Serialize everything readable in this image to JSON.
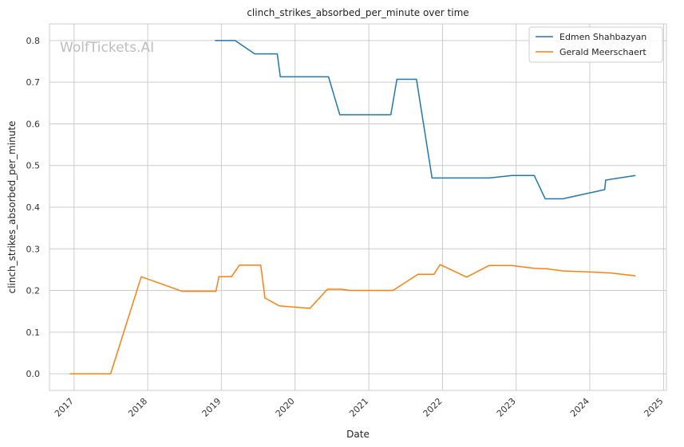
{
  "chart_data": {
    "type": "line",
    "title": "clinch_strikes_absorbed_per_minute over time",
    "xlabel": "Date",
    "ylabel": "clinch_strikes_absorbed_per_minute",
    "watermark": "WolfTickets.AI",
    "xlim": [
      "2016-09-01",
      "2025-01-15"
    ],
    "ylim": [
      -0.04,
      0.84
    ],
    "x_ticks": [
      "2017",
      "2018",
      "2019",
      "2020",
      "2021",
      "2022",
      "2023",
      "2024",
      "2025"
    ],
    "y_ticks": [
      "0.0",
      "0.1",
      "0.2",
      "0.3",
      "0.4",
      "0.5",
      "0.6",
      "0.7",
      "0.8"
    ],
    "grid": true,
    "legend_position": "top-right",
    "series": [
      {
        "name": "Edmen Shahbazyan",
        "color": "#1f77b4",
        "points": [
          [
            "2018-11-30",
            0.8
          ],
          [
            "2019-03-10",
            0.8
          ],
          [
            "2019-06-15",
            0.768
          ],
          [
            "2019-10-05",
            0.768
          ],
          [
            "2019-10-20",
            0.713
          ],
          [
            "2020-06-15",
            0.713
          ],
          [
            "2020-08-10",
            0.622
          ],
          [
            "2021-04-20",
            0.622
          ],
          [
            "2021-05-20",
            0.707
          ],
          [
            "2021-08-25",
            0.707
          ],
          [
            "2021-11-10",
            0.47
          ],
          [
            "2022-08-20",
            0.47
          ],
          [
            "2022-12-10",
            0.476
          ],
          [
            "2023-04-01",
            0.476
          ],
          [
            "2023-05-25",
            0.42
          ],
          [
            "2023-08-20",
            0.42
          ],
          [
            "2024-03-15",
            0.442
          ],
          [
            "2024-03-20",
            0.465
          ],
          [
            "2024-08-15",
            0.476
          ]
        ]
      },
      {
        "name": "Gerald Meerschaert",
        "color": "#ff7f0e",
        "points": [
          [
            "2016-12-10",
            0.0
          ],
          [
            "2017-07-01",
            0.0
          ],
          [
            "2017-11-30",
            0.233
          ],
          [
            "2018-06-20",
            0.198
          ],
          [
            "2018-12-05",
            0.198
          ],
          [
            "2018-12-20",
            0.233
          ],
          [
            "2019-02-20",
            0.233
          ],
          [
            "2019-04-01",
            0.261
          ],
          [
            "2019-07-15",
            0.261
          ],
          [
            "2019-08-05",
            0.182
          ],
          [
            "2019-10-15",
            0.163
          ],
          [
            "2020-03-15",
            0.157
          ],
          [
            "2020-06-10",
            0.203
          ],
          [
            "2020-08-15",
            0.203
          ],
          [
            "2020-09-30",
            0.2
          ],
          [
            "2021-05-01",
            0.2
          ],
          [
            "2021-09-01",
            0.239
          ],
          [
            "2021-11-20",
            0.239
          ],
          [
            "2021-12-20",
            0.262
          ],
          [
            "2022-05-01",
            0.232
          ],
          [
            "2022-08-20",
            0.26
          ],
          [
            "2022-12-10",
            0.26
          ],
          [
            "2023-04-01",
            0.253
          ],
          [
            "2023-06-01",
            0.252
          ],
          [
            "2023-08-20",
            0.247
          ],
          [
            "2024-01-15",
            0.244
          ],
          [
            "2024-04-15",
            0.242
          ],
          [
            "2024-08-15",
            0.235
          ]
        ]
      }
    ]
  }
}
